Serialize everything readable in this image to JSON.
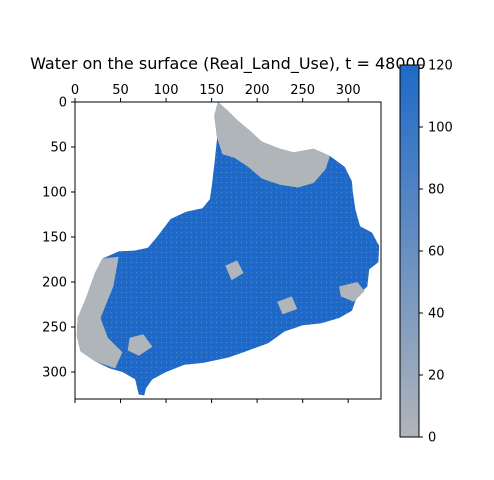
{
  "chart_data": {
    "type": "heatmap",
    "title": "Water on the surface (Real_Land_Use), t = 48000",
    "x_ticks": [
      0,
      50,
      100,
      150,
      200,
      250,
      300
    ],
    "y_ticks": [
      0,
      50,
      100,
      150,
      200,
      250,
      300
    ],
    "xlim": [
      0,
      336
    ],
    "ylim": [
      330,
      0
    ],
    "x_axis_position": "top",
    "grid": false,
    "colorbar": {
      "position": "right",
      "ticks": [
        0,
        20,
        40,
        60,
        80,
        100,
        120
      ],
      "range": [
        0,
        120
      ],
      "color_low": "#b0b5ba",
      "color_high": "#1f6ac8"
    },
    "region_boundary": [
      [
        157,
        0
      ],
      [
        168,
        10
      ],
      [
        178,
        20
      ],
      [
        192,
        32
      ],
      [
        205,
        44
      ],
      [
        225,
        52
      ],
      [
        240,
        56
      ],
      [
        262,
        52
      ],
      [
        280,
        60
      ],
      [
        296,
        72
      ],
      [
        304,
        88
      ],
      [
        305,
        100
      ],
      [
        308,
        120
      ],
      [
        313,
        138
      ],
      [
        326,
        145
      ],
      [
        334,
        160
      ],
      [
        333,
        178
      ],
      [
        323,
        186
      ],
      [
        321,
        205
      ],
      [
        310,
        215
      ],
      [
        304,
        232
      ],
      [
        290,
        240
      ],
      [
        270,
        246
      ],
      [
        250,
        248
      ],
      [
        230,
        255
      ],
      [
        212,
        268
      ],
      [
        185,
        278
      ],
      [
        168,
        284
      ],
      [
        140,
        290
      ],
      [
        120,
        292
      ],
      [
        100,
        300
      ],
      [
        85,
        308
      ],
      [
        78,
        318
      ],
      [
        76,
        326
      ],
      [
        70,
        325
      ],
      [
        66,
        308
      ],
      [
        52,
        300
      ],
      [
        38,
        296
      ],
      [
        22,
        288
      ],
      [
        6,
        277
      ],
      [
        2,
        260
      ],
      [
        3,
        240
      ],
      [
        12,
        218
      ],
      [
        22,
        190
      ],
      [
        30,
        174
      ],
      [
        48,
        166
      ],
      [
        66,
        165
      ],
      [
        80,
        162
      ],
      [
        90,
        150
      ],
      [
        105,
        130
      ],
      [
        122,
        122
      ],
      [
        140,
        118
      ],
      [
        148,
        108
      ],
      [
        150,
        95
      ],
      [
        153,
        70
      ],
      [
        156,
        40
      ],
      [
        153,
        15
      ]
    ],
    "dry_patches": [
      [
        [
          157,
          0
        ],
        [
          168,
          10
        ],
        [
          178,
          20
        ],
        [
          192,
          32
        ],
        [
          205,
          44
        ],
        [
          225,
          52
        ],
        [
          240,
          56
        ],
        [
          262,
          52
        ],
        [
          280,
          60
        ],
        [
          275,
          75
        ],
        [
          262,
          90
        ],
        [
          245,
          95
        ],
        [
          225,
          92
        ],
        [
          205,
          85
        ],
        [
          190,
          72
        ],
        [
          175,
          62
        ],
        [
          162,
          58
        ],
        [
          156,
          40
        ],
        [
          153,
          15
        ]
      ],
      [
        [
          22,
          190
        ],
        [
          30,
          174
        ],
        [
          48,
          172
        ],
        [
          42,
          205
        ],
        [
          28,
          240
        ],
        [
          36,
          262
        ],
        [
          52,
          278
        ],
        [
          44,
          296
        ],
        [
          22,
          288
        ],
        [
          6,
          277
        ],
        [
          2,
          260
        ],
        [
          3,
          240
        ],
        [
          12,
          218
        ]
      ],
      [
        [
          60,
          262
        ],
        [
          75,
          258
        ],
        [
          85,
          272
        ],
        [
          70,
          282
        ],
        [
          58,
          276
        ]
      ],
      [
        [
          290,
          205
        ],
        [
          310,
          200
        ],
        [
          318,
          210
        ],
        [
          306,
          222
        ],
        [
          292,
          216
        ]
      ],
      [
        [
          165,
          182
        ],
        [
          178,
          176
        ],
        [
          185,
          190
        ],
        [
          172,
          198
        ]
      ],
      [
        [
          222,
          222
        ],
        [
          238,
          216
        ],
        [
          244,
          230
        ],
        [
          228,
          236
        ]
      ]
    ]
  }
}
